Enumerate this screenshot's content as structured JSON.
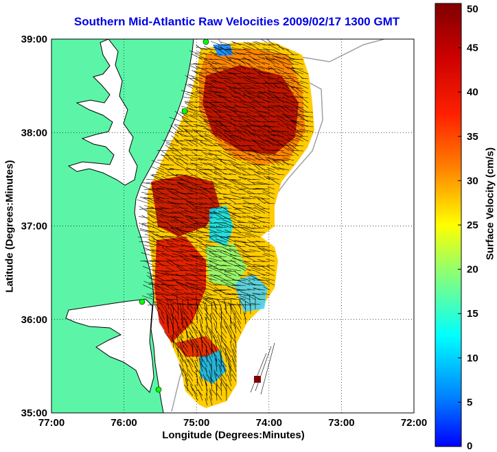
{
  "title": "Southern Mid-Atlantic Raw Velocities 2009/02/17 1300 GMT",
  "xlabel": "Longitude (Degrees:Minutes)",
  "ylabel": "Latitude (Degrees:Minutes)",
  "colorbar": {
    "label": "Surface Velocity (cm/s)",
    "ticks": [
      "0",
      "5",
      "10",
      "15",
      "20",
      "25",
      "30",
      "35",
      "40",
      "45",
      "50"
    ],
    "range": [
      0,
      50
    ],
    "colormap": "jet"
  },
  "map": {
    "lon_ticks": [
      "77:00",
      "76:00",
      "75:00",
      "74:00",
      "73:00",
      "72:00"
    ],
    "lat_ticks": [
      "39:00",
      "38:00",
      "37:00",
      "36:00",
      "35:00"
    ],
    "lon_range": [
      -77,
      -72
    ],
    "lat_range": [
      35,
      39
    ],
    "land_color": "#5cf5a8",
    "water_color": "#ffffff",
    "grid": "dotted",
    "stations": [
      "green-dot",
      "green-dot",
      "green-dot",
      "green-dot"
    ]
  }
}
